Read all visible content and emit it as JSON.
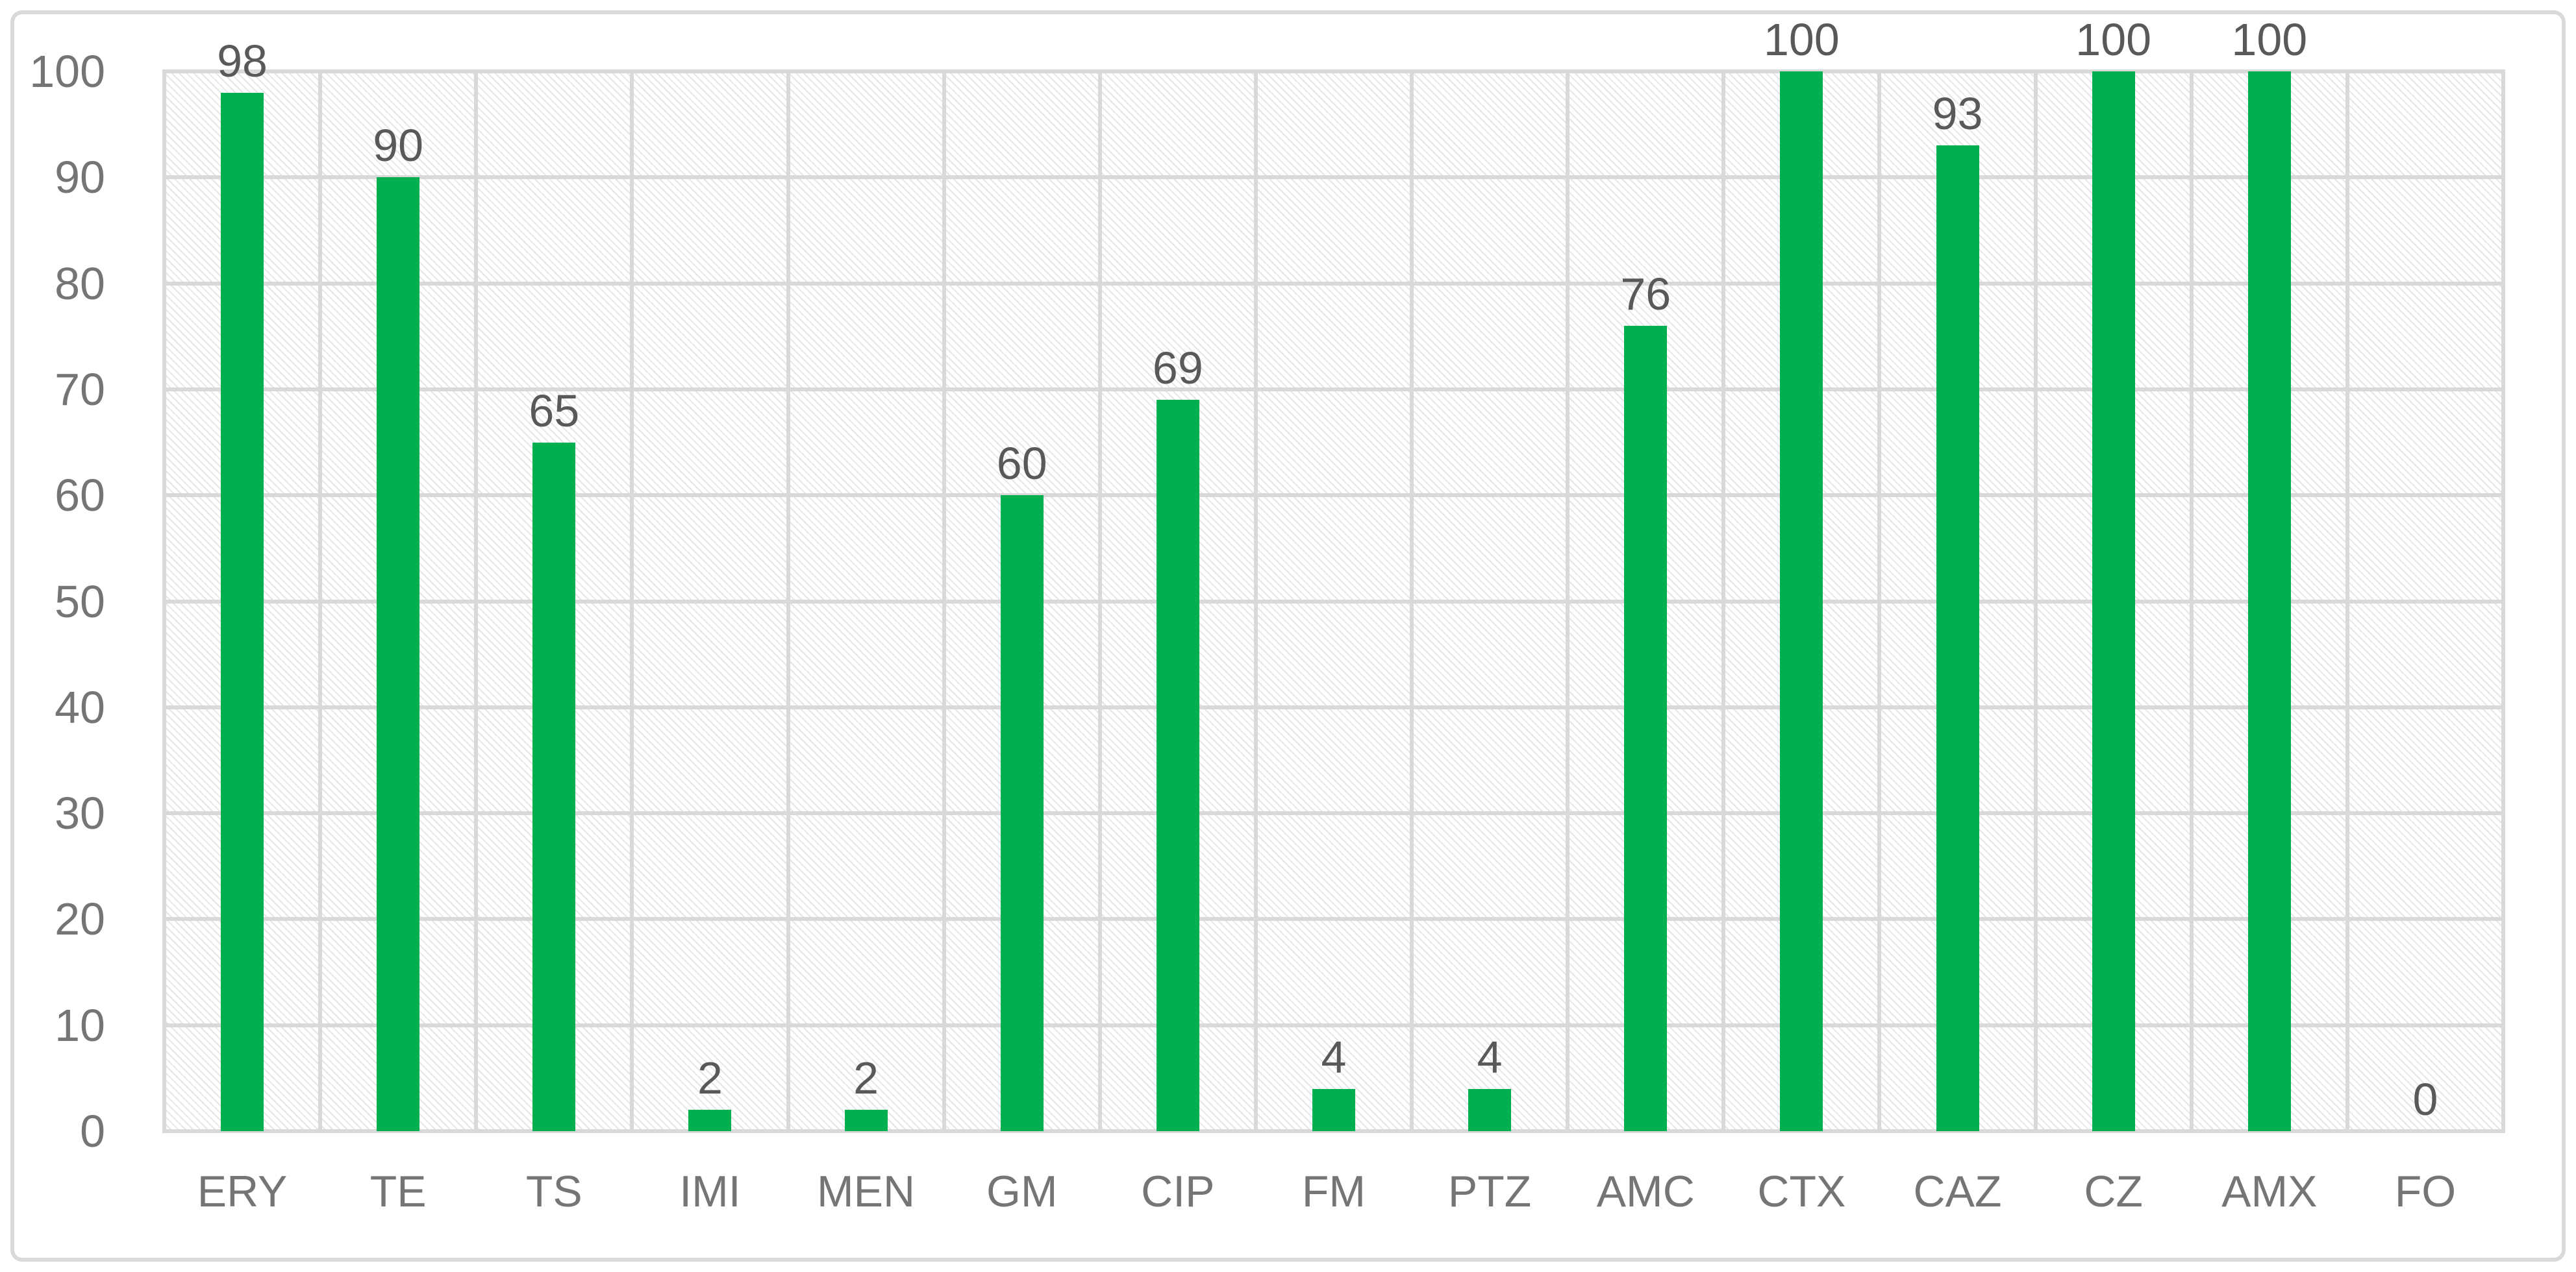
{
  "chart_data": {
    "type": "bar",
    "title": "",
    "xlabel": "",
    "ylabel": "",
    "categories": [
      "ERY",
      "TE",
      "TS",
      "IMI",
      "MEN",
      "GM",
      "CIP",
      "FM",
      "PTZ",
      "AMC",
      "CTX",
      "CAZ",
      "CZ",
      "AMX",
      "FO"
    ],
    "values": [
      98,
      90,
      65,
      2,
      2,
      60,
      69,
      4,
      4,
      76,
      100,
      93,
      100,
      100,
      0
    ],
    "data_labels": [
      "98",
      "90",
      "65",
      "2",
      "2",
      "60",
      "69",
      "4",
      "4",
      "76",
      "100",
      "93",
      "100",
      "100",
      "0"
    ],
    "yticks": [
      "0",
      "10",
      "20",
      "30",
      "40",
      "50",
      "60",
      "70",
      "80",
      "90",
      "100"
    ],
    "ylim": [
      0,
      100
    ],
    "grid": true,
    "gridlines": "horizontal-and-vertical",
    "legend": false,
    "plot_background": "diagonal-hatch-pattern",
    "colors": {
      "bar": "#00B050",
      "grid": "#D9D9D9",
      "hatch": "#D6D6D6",
      "frame_border": "#D9D9D9",
      "tick_text": "#757575",
      "label_text": "#595959",
      "background": "#FFFFFF"
    }
  }
}
